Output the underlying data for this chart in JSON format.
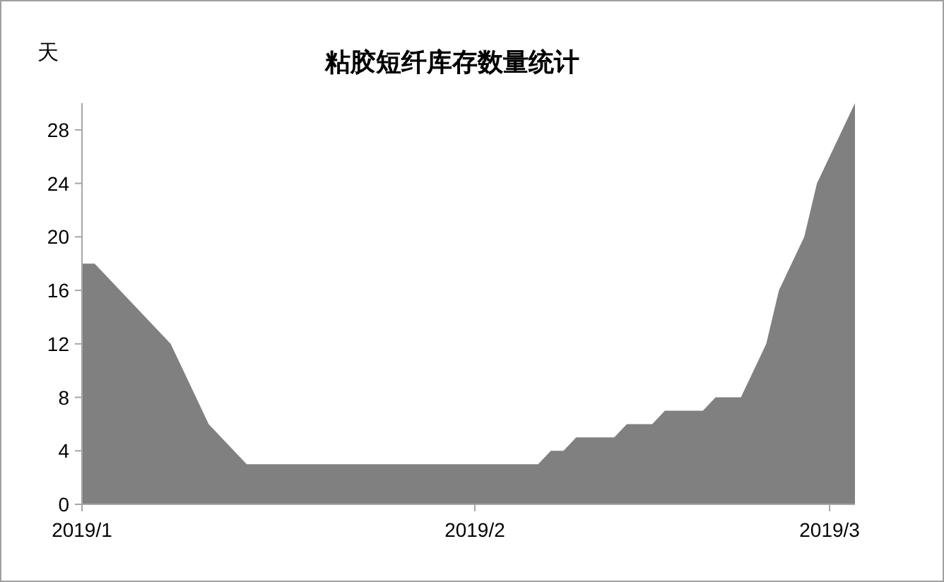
{
  "chart_data": {
    "type": "area",
    "title": "粘胶短纤库存数量统计",
    "ylabel": "天",
    "x": [
      "2019-01-01",
      "2019-01-02",
      "2019-01-08",
      "2019-01-11",
      "2019-01-14",
      "2019-02-06",
      "2019-02-07",
      "2019-02-08",
      "2019-02-09",
      "2019-02-12",
      "2019-02-13",
      "2019-02-15",
      "2019-02-16",
      "2019-02-19",
      "2019-02-20",
      "2019-02-22",
      "2019-02-24",
      "2019-02-25",
      "2019-02-27",
      "2019-02-28",
      "2019-03-03"
    ],
    "values": [
      18,
      18,
      12,
      6,
      3,
      3,
      4,
      4,
      5,
      5,
      6,
      6,
      7,
      7,
      8,
      8,
      12,
      16,
      20,
      24,
      30
    ],
    "color": "#808080",
    "xlim": [
      "2019-01-01",
      "2019-03-03"
    ],
    "xticks": [
      {
        "value": "2019-01-01",
        "label": "2019/1"
      },
      {
        "value": "2019-02-01",
        "label": "2019/2"
      },
      {
        "value": "2019-03-01",
        "label": "2019/3"
      }
    ],
    "ylim": [
      0,
      30
    ],
    "yticks": [
      0,
      4,
      8,
      12,
      16,
      20,
      24,
      28
    ]
  }
}
